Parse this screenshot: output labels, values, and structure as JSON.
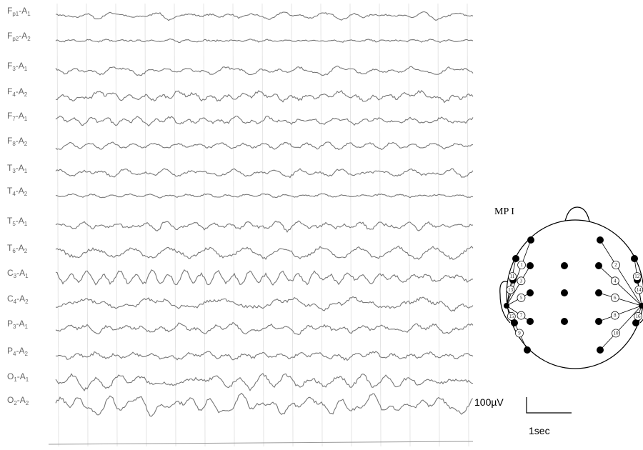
{
  "channels": [
    [
      "F",
      "p1",
      "-A",
      "1"
    ],
    [
      "F",
      "p2",
      "-A",
      "2"
    ],
    [
      "F",
      "3",
      "-A",
      "1"
    ],
    [
      "F",
      "4",
      "-A",
      "2"
    ],
    [
      "F",
      "7",
      "-A",
      "1"
    ],
    [
      "F",
      "8",
      "-A",
      "2"
    ],
    [
      "T",
      "3",
      "-A",
      "1"
    ],
    [
      "T",
      "4",
      "-A",
      "2"
    ],
    [
      "T",
      "5",
      "-A",
      "1"
    ],
    [
      "T",
      "6",
      "-A",
      "2"
    ],
    [
      "C",
      "3",
      "-A",
      "1"
    ],
    [
      "C",
      "4",
      "-A",
      "2"
    ],
    [
      "P",
      "3",
      "-A",
      "1"
    ],
    [
      "P",
      "4",
      "-A",
      "2"
    ],
    [
      "O",
      "1",
      "-A",
      "1"
    ],
    [
      "O",
      "2",
      "-A",
      "2"
    ]
  ],
  "montage": {
    "title": "MP I",
    "electrode_numbers": [
      1,
      2,
      3,
      4,
      5,
      6,
      7,
      8,
      9,
      10,
      11,
      12,
      13,
      14,
      15,
      16
    ]
  },
  "scale": {
    "amplitude": "100µV",
    "time": "1sec"
  }
}
